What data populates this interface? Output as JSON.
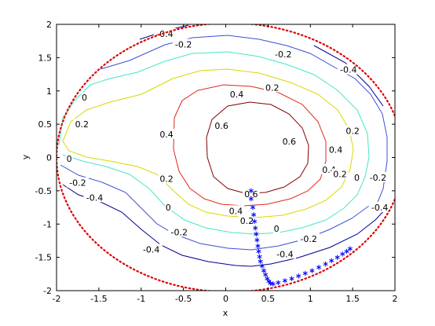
{
  "chart_data": {
    "type": "contour",
    "title": "",
    "xlabel": "x",
    "ylabel": "y",
    "xlim": [
      -2,
      2
    ],
    "ylim": [
      -2,
      2
    ],
    "xticks": [
      "-2",
      "-1.5",
      "-1",
      "-0.5",
      "0",
      "0.5",
      "1",
      "1.5",
      "2"
    ],
    "yticks": [
      "-2",
      "-1.5",
      "-1",
      "-0.5",
      "0",
      "0.5",
      "1",
      "1.5",
      "2"
    ],
    "grid": false,
    "contour_levels": [
      {
        "level": -0.4,
        "color": "#00008f",
        "label": "-0.4"
      },
      {
        "level": -0.2,
        "color": "#3b4fd9",
        "label": "-0.2"
      },
      {
        "level": 0,
        "color": "#47e6c8",
        "label": "0"
      },
      {
        "level": 0.2,
        "color": "#d8d800",
        "label": "0.2"
      },
      {
        "level": 0.4,
        "color": "#e0271b",
        "label": "0.4"
      },
      {
        "level": 0.6,
        "color": "#800000",
        "label": "0.6"
      }
    ],
    "contour_labels": [
      {
        "text": "-0.4",
        "x": -0.72,
        "y": 1.86
      },
      {
        "text": "-0.2",
        "x": -0.5,
        "y": 1.7
      },
      {
        "text": "0",
        "x": -1.67,
        "y": 0.9
      },
      {
        "text": "0.2",
        "x": -1.7,
        "y": 0.5
      },
      {
        "text": "0",
        "x": -1.85,
        "y": -0.02
      },
      {
        "text": "-0.2",
        "x": -1.75,
        "y": -0.38
      },
      {
        "text": "-0.4",
        "x": -1.55,
        "y": -0.6
      },
      {
        "text": "-0.2",
        "x": 0.68,
        "y": 1.55
      },
      {
        "text": "0.2",
        "x": 0.55,
        "y": 1.05
      },
      {
        "text": "0.4",
        "x": 0.13,
        "y": 0.95
      },
      {
        "text": "0.6",
        "x": -0.05,
        "y": 0.48
      },
      {
        "text": "0.4",
        "x": -0.7,
        "y": 0.35
      },
      {
        "text": "0.6",
        "x": 0.75,
        "y": 0.24
      },
      {
        "text": "0.4",
        "x": 1.3,
        "y": 0.12
      },
      {
        "text": "0.2",
        "x": 1.5,
        "y": 0.4
      },
      {
        "text": "-0.4",
        "x": 1.45,
        "y": 1.32
      },
      {
        "text": "0.4",
        "x": 1.22,
        "y": -0.18
      },
      {
        "text": "0.2",
        "x": 1.35,
        "y": -0.25
      },
      {
        "text": "0",
        "x": 1.55,
        "y": -0.3
      },
      {
        "text": "-0.2",
        "x": 1.8,
        "y": -0.3
      },
      {
        "text": "-0.4",
        "x": 1.82,
        "y": -0.75
      },
      {
        "text": "0.2",
        "x": -0.7,
        "y": -0.32
      },
      {
        "text": "0",
        "x": -0.68,
        "y": -0.75
      },
      {
        "text": "-0.2",
        "x": -0.55,
        "y": -1.12
      },
      {
        "text": "-0.4",
        "x": -0.88,
        "y": -1.38
      },
      {
        "text": "0.6",
        "x": 0.3,
        "y": -0.55
      },
      {
        "text": "0.4",
        "x": 0.12,
        "y": -0.8
      },
      {
        "text": "0.2",
        "x": 0.25,
        "y": -0.95
      },
      {
        "text": "0",
        "x": 0.6,
        "y": -1.07
      },
      {
        "text": "-0.2",
        "x": 0.98,
        "y": -1.22
      },
      {
        "text": "-0.4",
        "x": 0.7,
        "y": -1.45
      }
    ],
    "boundary_ellipse": {
      "cx": 0.05,
      "cy": 0,
      "rx": 2.05,
      "ry": 2.02,
      "color": "#e00000",
      "style": "dotted"
    },
    "trajectory": {
      "color": "#0000ff",
      "marker": "*",
      "x": [
        0.3,
        0.3,
        0.32,
        0.33,
        0.34,
        0.35,
        0.36,
        0.37,
        0.38,
        0.39,
        0.4,
        0.41,
        0.43,
        0.45,
        0.47,
        0.49,
        0.51,
        0.53,
        0.56,
        0.62,
        0.7,
        0.78,
        0.86,
        0.94,
        1.02,
        1.1,
        1.18,
        1.25,
        1.32,
        1.38,
        1.43,
        1.47
      ],
      "y": [
        -0.5,
        -0.62,
        -0.75,
        -0.86,
        -0.96,
        -1.06,
        -1.15,
        -1.24,
        -1.33,
        -1.41,
        -1.49,
        -1.56,
        -1.63,
        -1.7,
        -1.76,
        -1.82,
        -1.86,
        -1.89,
        -1.9,
        -1.88,
        -1.85,
        -1.82,
        -1.78,
        -1.74,
        -1.7,
        -1.65,
        -1.6,
        -1.55,
        -1.5,
        -1.45,
        -1.41,
        -1.37
      ]
    }
  }
}
